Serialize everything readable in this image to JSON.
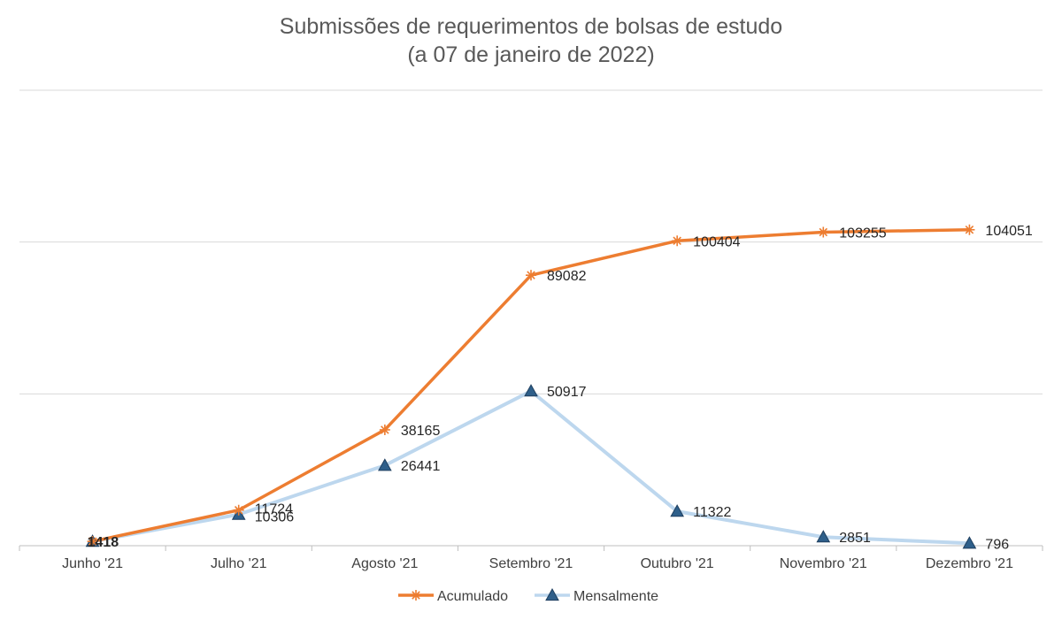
{
  "chart_data": {
    "type": "line",
    "title": "Submissões de requerimentos de bolsas de estudo",
    "subtitle": "(a 07 de janeiro de 2022)",
    "xlabel": "",
    "ylabel": "",
    "categories": [
      "Junho '21",
      "Julho '21",
      "Agosto '21",
      "Setembro '21",
      "Outubro '21",
      "Novembro '21",
      "Dezembro '21"
    ],
    "ylim": [
      0,
      150000
    ],
    "grid": true,
    "legend_position": "bottom",
    "series": [
      {
        "name": "Acumulado",
        "color": "#ED7D31",
        "marker": "asterisk",
        "values": [
          1418,
          11724,
          38165,
          89082,
          100404,
          103255,
          104051
        ],
        "labels": [
          "1418",
          "11724",
          "38165",
          "89082",
          "100404",
          "103255",
          "104051"
        ]
      },
      {
        "name": "Mensalmente",
        "color": "#BDD7EE",
        "marker": "triangle",
        "values": [
          1418,
          10306,
          26441,
          50917,
          11322,
          2851,
          796
        ],
        "labels": [
          "",
          "10306",
          "26441",
          "50917",
          "11322",
          "2851",
          "796"
        ]
      }
    ]
  }
}
